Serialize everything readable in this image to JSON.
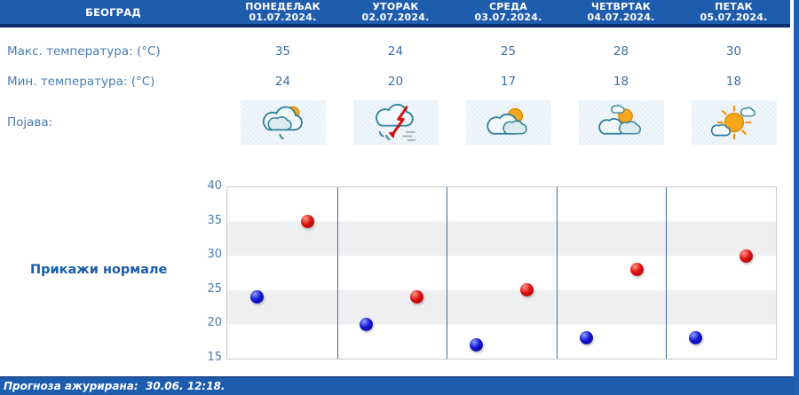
{
  "station": {
    "name": "БЕОГРАД"
  },
  "days": [
    {
      "name": "ПОНЕДЕЉАК",
      "date": "01.07.2024.",
      "max": "35",
      "min": "24",
      "icon": "sun-cloud-light-rain-icon"
    },
    {
      "name": "УТОРАК",
      "date": "02.07.2024.",
      "max": "24",
      "min": "20",
      "icon": "thunderstorm-rain-icon"
    },
    {
      "name": "СРЕДА",
      "date": "03.07.2024.",
      "max": "25",
      "min": "17",
      "icon": "mostly-cloudy-sun-icon"
    },
    {
      "name": "ЧЕТВРТАК",
      "date": "04.07.2024.",
      "max": "28",
      "min": "18",
      "icon": "partly-cloudy-icon"
    },
    {
      "name": "ПЕТАК",
      "date": "05.07.2024.",
      "max": "30",
      "min": "18",
      "icon": "mostly-sunny-cloud-icon"
    }
  ],
  "rows": {
    "max_label": "Макс. температура: (°C)",
    "min_label": "Мин. температура: (°C)",
    "phenomenon_label": "Појава:"
  },
  "normals_button_label": "Прикажи нормале",
  "footer": {
    "updated_text": "Прогноза ажурирана:  30.06. 12:18."
  },
  "colors": {
    "header_blue": "#1e5cae",
    "header_border": "#0c2e6e",
    "label_blue": "#4a7cb0",
    "value_blue": "#3a6ea5",
    "link_blue": "#1a5dab",
    "max_dot_red": "#d11010",
    "min_dot_blue": "#1616d6",
    "band_gray": "#efeff1",
    "icon_cell_bg": "#e7f0f8"
  },
  "chart_data": {
    "type": "scatter",
    "categories": [
      "01.07.2024.",
      "02.07.2024.",
      "03.07.2024.",
      "04.07.2024.",
      "05.07.2024."
    ],
    "series": [
      {
        "name": "Мин. температура (°C)",
        "color": "#1616d6",
        "values": [
          24,
          20,
          17,
          18,
          18
        ]
      },
      {
        "name": "Макс. температура (°C)",
        "color": "#d11010",
        "values": [
          35,
          24,
          25,
          28,
          30
        ]
      }
    ],
    "title": "",
    "xlabel": "",
    "ylabel": "",
    "ylim": [
      15,
      40
    ],
    "yticks": [
      40,
      35,
      30,
      25,
      20,
      15
    ],
    "grid": "horizontal-bands",
    "legend": "none",
    "column_dividers": true
  }
}
